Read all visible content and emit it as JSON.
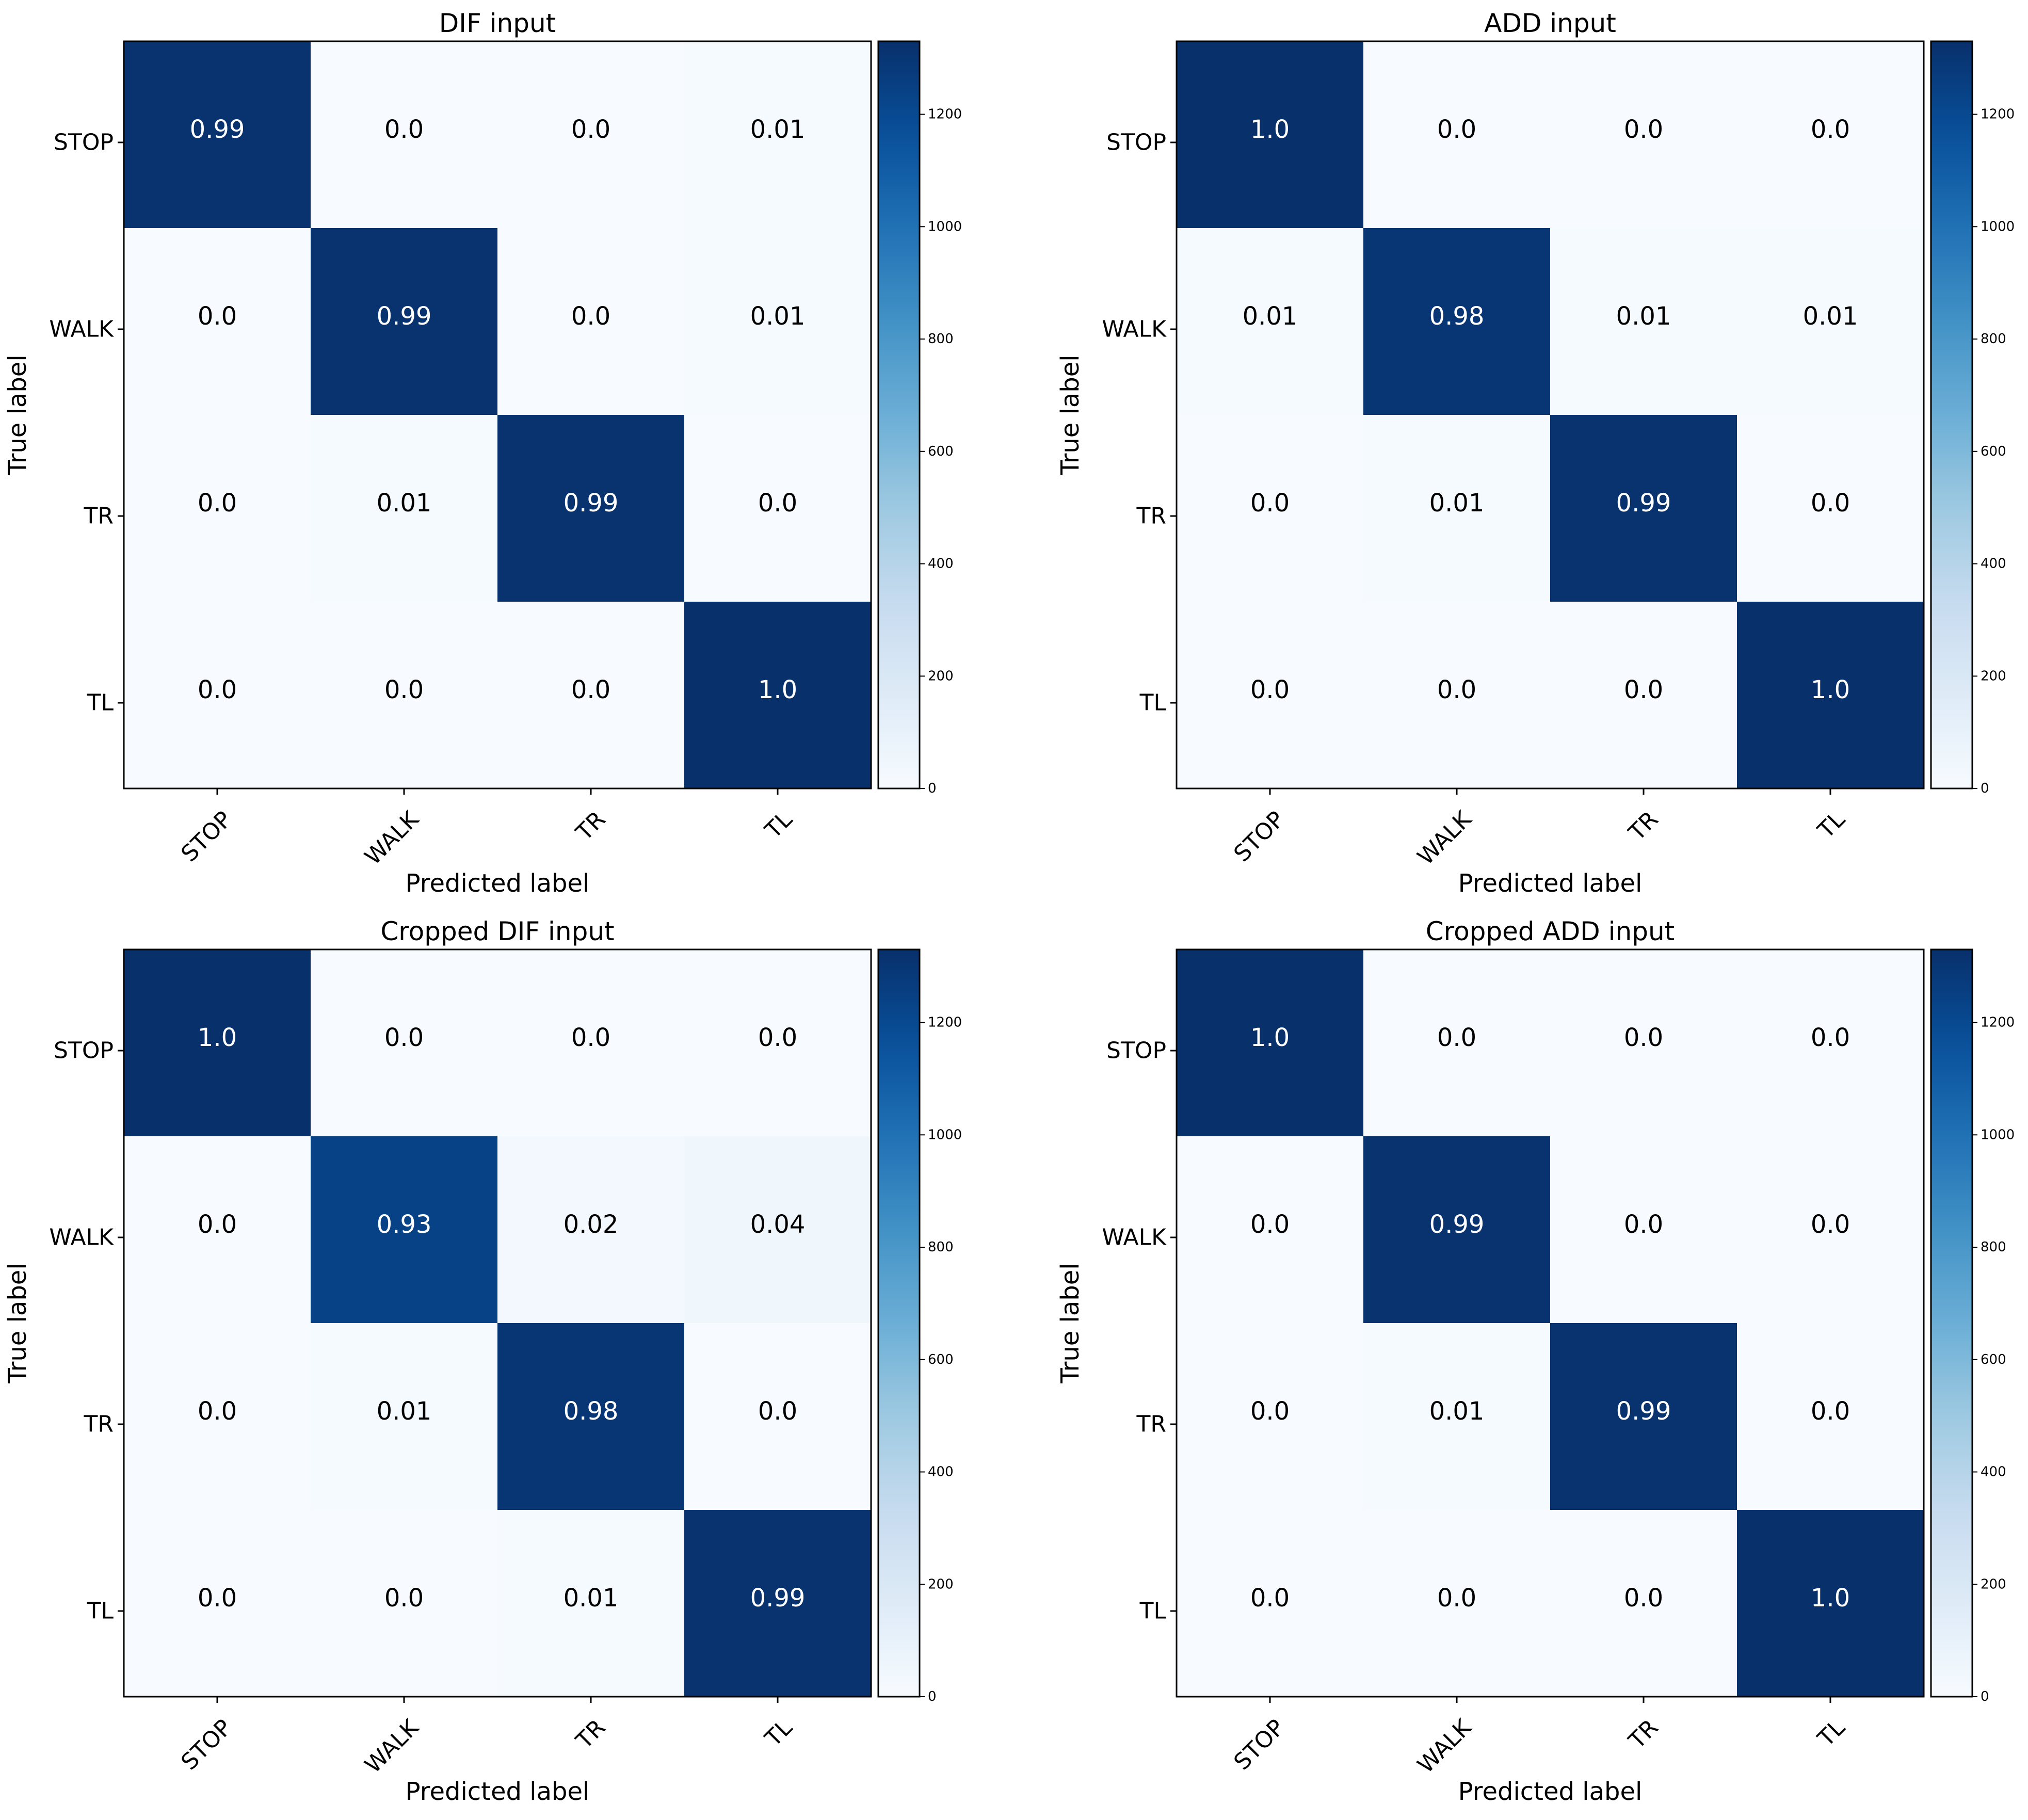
{
  "chart_data": [
    {
      "type": "heatmap",
      "title": "DIF input",
      "xlabel": "Predicted label",
      "ylabel": "True label",
      "x_categories": [
        "STOP",
        "WALK",
        "TR",
        "TL"
      ],
      "y_categories": [
        "STOP",
        "WALK",
        "TR",
        "TL"
      ],
      "cell_labels": [
        [
          "0.99",
          "0.0",
          "0.0",
          "0.01"
        ],
        [
          "0.0",
          "0.99",
          "0.0",
          "0.01"
        ],
        [
          "0.0",
          "0.01",
          "0.99",
          "0.0"
        ],
        [
          "0.0",
          "0.0",
          "0.0",
          "1.0"
        ]
      ],
      "values": [
        [
          0.99,
          0.0,
          0.0,
          0.01
        ],
        [
          0.0,
          0.99,
          0.0,
          0.01
        ],
        [
          0.0,
          0.01,
          0.99,
          0.0
        ],
        [
          0.0,
          0.0,
          0.0,
          1.0
        ]
      ],
      "colorbar": {
        "ticks": [
          "0",
          "200",
          "400",
          "600",
          "800",
          "1000",
          "1200"
        ],
        "range": [
          0,
          1330
        ]
      },
      "colormap": "Blues"
    },
    {
      "type": "heatmap",
      "title": "ADD input",
      "xlabel": "Predicted label",
      "ylabel": "True label",
      "x_categories": [
        "STOP",
        "WALK",
        "TR",
        "TL"
      ],
      "y_categories": [
        "STOP",
        "WALK",
        "TR",
        "TL"
      ],
      "cell_labels": [
        [
          "1.0",
          "0.0",
          "0.0",
          "0.0"
        ],
        [
          "0.01",
          "0.98",
          "0.01",
          "0.01"
        ],
        [
          "0.0",
          "0.01",
          "0.99",
          "0.0"
        ],
        [
          "0.0",
          "0.0",
          "0.0",
          "1.0"
        ]
      ],
      "values": [
        [
          1.0,
          0.0,
          0.0,
          0.0
        ],
        [
          0.01,
          0.98,
          0.01,
          0.01
        ],
        [
          0.0,
          0.01,
          0.99,
          0.0
        ],
        [
          0.0,
          0.0,
          0.0,
          1.0
        ]
      ],
      "colorbar": {
        "ticks": [
          "0",
          "200",
          "400",
          "600",
          "800",
          "1000",
          "1200"
        ],
        "range": [
          0,
          1330
        ]
      },
      "colormap": "Blues"
    },
    {
      "type": "heatmap",
      "title": "Cropped DIF input",
      "xlabel": "Predicted label",
      "ylabel": "True label",
      "x_categories": [
        "STOP",
        "WALK",
        "TR",
        "TL"
      ],
      "y_categories": [
        "STOP",
        "WALK",
        "TR",
        "TL"
      ],
      "cell_labels": [
        [
          "1.0",
          "0.0",
          "0.0",
          "0.0"
        ],
        [
          "0.0",
          "0.93",
          "0.02",
          "0.04"
        ],
        [
          "0.0",
          "0.01",
          "0.98",
          "0.0"
        ],
        [
          "0.0",
          "0.0",
          "0.01",
          "0.99"
        ]
      ],
      "values": [
        [
          1.0,
          0.0,
          0.0,
          0.0
        ],
        [
          0.0,
          0.93,
          0.02,
          0.04
        ],
        [
          0.0,
          0.01,
          0.98,
          0.0
        ],
        [
          0.0,
          0.0,
          0.01,
          0.99
        ]
      ],
      "colorbar": {
        "ticks": [
          "0",
          "200",
          "400",
          "600",
          "800",
          "1000",
          "1200"
        ],
        "range": [
          0,
          1330
        ]
      },
      "colormap": "Blues"
    },
    {
      "type": "heatmap",
      "title": "Cropped ADD input",
      "xlabel": "Predicted label",
      "ylabel": "True label",
      "x_categories": [
        "STOP",
        "WALK",
        "TR",
        "TL"
      ],
      "y_categories": [
        "STOP",
        "WALK",
        "TR",
        "TL"
      ],
      "cell_labels": [
        [
          "1.0",
          "0.0",
          "0.0",
          "0.0"
        ],
        [
          "0.0",
          "0.99",
          "0.0",
          "0.0"
        ],
        [
          "0.0",
          "0.01",
          "0.99",
          "0.0"
        ],
        [
          "0.0",
          "0.0",
          "0.0",
          "1.0"
        ]
      ],
      "values": [
        [
          1.0,
          0.0,
          0.0,
          0.0
        ],
        [
          0.0,
          0.99,
          0.0,
          0.0
        ],
        [
          0.0,
          0.01,
          0.99,
          0.0
        ],
        [
          0.0,
          0.0,
          0.0,
          1.0
        ]
      ],
      "colorbar": {
        "ticks": [
          "0",
          "200",
          "400",
          "600",
          "800",
          "1000",
          "1200"
        ],
        "range": [
          0,
          1330
        ]
      },
      "colormap": "Blues"
    }
  ]
}
